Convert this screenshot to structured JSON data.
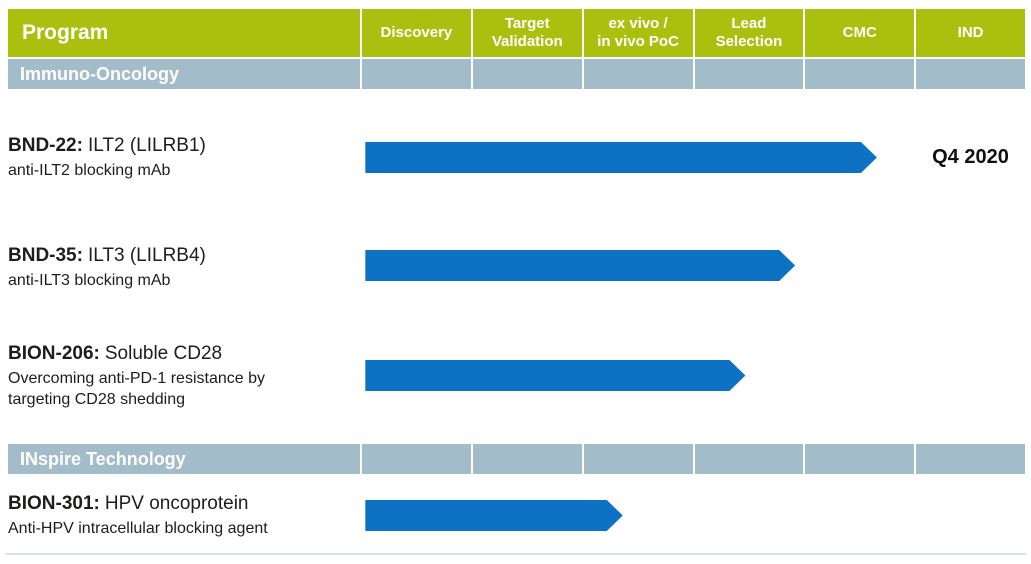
{
  "header": {
    "program_label": "Program",
    "stages": [
      {
        "label": "Discovery"
      },
      {
        "label": "Target\nValidation"
      },
      {
        "label": "ex vivo /\nin vivo PoC"
      },
      {
        "label": "Lead\nSelection"
      },
      {
        "label": "CMC"
      },
      {
        "label": "IND"
      }
    ]
  },
  "sections": [
    {
      "label": "Immuno-Oncology"
    },
    {
      "label": "INspire Technology"
    }
  ],
  "programs": [
    {
      "code": "BND-22:",
      "name": "ILT2 (LILRB1)",
      "description": "anti-ILT2 blocking mAb",
      "milestone": "Q4 2020"
    },
    {
      "code": "BND-35:",
      "name": "ILT3 (LILRB4)",
      "description": "anti-ILT3 blocking mAb",
      "milestone": ""
    },
    {
      "code": "BION-206:",
      "name": "Soluble CD28",
      "description": "Overcoming anti-PD-1 resistance by\ntargeting CD28 shedding",
      "milestone": ""
    },
    {
      "code": "BION-301:",
      "name": "HPV oncoprotein",
      "description": "Anti-HPV intracellular blocking agent",
      "milestone": ""
    }
  ],
  "chart_data": {
    "type": "bar",
    "orientation": "horizontal",
    "title": "Program development pipeline",
    "stage_axis": [
      "Discovery",
      "Target Validation",
      "ex vivo / in vivo PoC",
      "Lead Selection",
      "CMC",
      "IND"
    ],
    "stage_axis_range": [
      0,
      6
    ],
    "series": [
      {
        "name": "BND-22",
        "section": "Immuno-Oncology",
        "start_stage": 0.03,
        "end_stage": 4.66,
        "milestone_label": "Q4 2020"
      },
      {
        "name": "BND-35",
        "section": "Immuno-Oncology",
        "start_stage": 0.03,
        "end_stage": 3.92,
        "milestone_label": ""
      },
      {
        "name": "BION-206",
        "section": "Immuno-Oncology",
        "start_stage": 0.03,
        "end_stage": 3.47,
        "milestone_label": ""
      },
      {
        "name": "BION-301",
        "section": "INspire Technology",
        "start_stage": 0.03,
        "end_stage": 2.36,
        "milestone_label": ""
      }
    ],
    "colors": {
      "bar": "#0e72c4",
      "header": "#a9c00e",
      "section": "#a2bcc9",
      "divider": "#d8e2e8"
    }
  }
}
